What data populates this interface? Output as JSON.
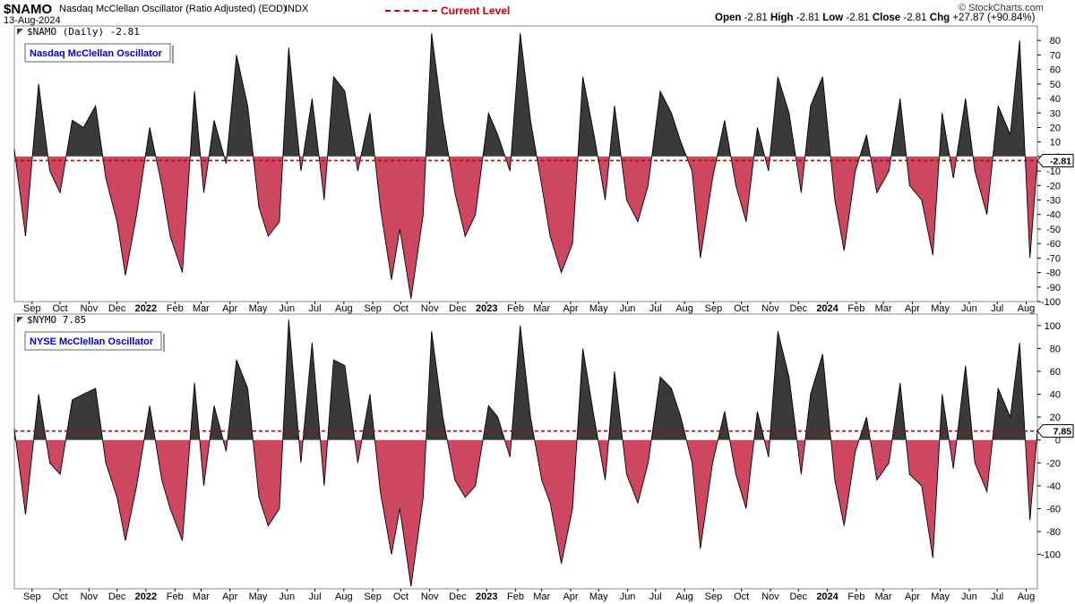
{
  "header": {
    "symbol": "$NAMO",
    "description": "Nasdaq McClellan Oscillator (Ratio Adjusted) (EOD)",
    "exchange": "INDX",
    "date": "13-Aug-2024",
    "legend_current": "Current Level",
    "ohlc": [
      {
        "label": "Open",
        "value": "-2.81"
      },
      {
        "label": "High",
        "value": "-2.81"
      },
      {
        "label": "Low",
        "value": "-2.81"
      },
      {
        "label": "Close",
        "value": "-2.81"
      },
      {
        "label": "Chg",
        "value": "+27.87 (+90.84%)"
      }
    ],
    "brand": "© StockCharts.com"
  },
  "colors": {
    "positive": "#3a3a3a",
    "negative": "#cd4760",
    "current_line": "#cc0000",
    "label_text": "#0000cc"
  },
  "chart_data": [
    {
      "type": "area",
      "panel_title": "$NAMO (Daily) -2.81",
      "legend_box": "Nasdaq McClellan Oscillator",
      "current_level": -2.81,
      "current_tag": "-2.81",
      "ylim": [
        -100,
        90
      ],
      "yticks": [
        80,
        70,
        60,
        50,
        40,
        30,
        20,
        10,
        0,
        -10,
        -20,
        -30,
        -40,
        -50,
        -60,
        -70,
        -80,
        -90,
        -100
      ],
      "x_labels": [
        "Sep",
        "Oct",
        "Nov",
        "Dec",
        "2022",
        "Feb",
        "Mar",
        "Apr",
        "May",
        "Jun",
        "Jul",
        "Aug",
        "Sep",
        "Oct",
        "Nov",
        "Dec",
        "2023",
        "Feb",
        "Mar",
        "Apr",
        "May",
        "Jun",
        "Jul",
        "Aug",
        "Sep",
        "Oct",
        "Nov",
        "Dec",
        "2024",
        "Feb",
        "Mar",
        "Apr",
        "May",
        "Jun",
        "Jul",
        "Aug"
      ],
      "x_range": [
        "2021-08-13",
        "2024-08-13"
      ],
      "grid": false,
      "series": [
        {
          "x": [
            "2021-08-13",
            "2021-08-25",
            "2021-09-08",
            "2021-09-20",
            "2021-10-01",
            "2021-10-14",
            "2021-10-26",
            "2021-11-08",
            "2021-11-19",
            "2021-12-01",
            "2021-12-10",
            "2021-12-22",
            "2022-01-05",
            "2022-01-18",
            "2022-01-27",
            "2022-02-09",
            "2022-02-22",
            "2022-03-04",
            "2022-03-15",
            "2022-03-28",
            "2022-04-08",
            "2022-04-20",
            "2022-05-02",
            "2022-05-12",
            "2022-05-24",
            "2022-06-03",
            "2022-06-16",
            "2022-06-28",
            "2022-07-11",
            "2022-07-21",
            "2022-08-02",
            "2022-08-16",
            "2022-08-29",
            "2022-09-09",
            "2022-09-21",
            "2022-09-30",
            "2022-10-12",
            "2022-10-25",
            "2022-11-03",
            "2022-11-15",
            "2022-11-28",
            "2022-12-09",
            "2022-12-20",
            "2023-01-03",
            "2023-01-13",
            "2023-01-26",
            "2023-02-06",
            "2023-02-17",
            "2023-03-01",
            "2023-03-10",
            "2023-03-22",
            "2023-04-03",
            "2023-04-14",
            "2023-04-26",
            "2023-05-08",
            "2023-05-18",
            "2023-05-31",
            "2023-06-12",
            "2023-06-23",
            "2023-07-06",
            "2023-07-18",
            "2023-07-28",
            "2023-08-09",
            "2023-08-18",
            "2023-08-31",
            "2023-09-13",
            "2023-09-25",
            "2023-10-06",
            "2023-10-18",
            "2023-10-30",
            "2023-11-09",
            "2023-11-21",
            "2023-12-04",
            "2023-12-14",
            "2023-12-27",
            "2024-01-09",
            "2024-01-19",
            "2024-01-31",
            "2024-02-12",
            "2024-02-23",
            "2024-03-07",
            "2024-03-19",
            "2024-03-29",
            "2024-04-11",
            "2024-04-23",
            "2024-05-03",
            "2024-05-15",
            "2024-05-28",
            "2024-06-07",
            "2024-06-20",
            "2024-07-02",
            "2024-07-15",
            "2024-07-25",
            "2024-08-05",
            "2024-08-13"
          ],
          "y": [
            5,
            -55,
            50,
            -10,
            -25,
            25,
            20,
            35,
            -15,
            -45,
            -82,
            -40,
            20,
            -20,
            -55,
            -80,
            45,
            -25,
            25,
            -5,
            70,
            35,
            -35,
            -55,
            -45,
            75,
            -10,
            40,
            -30,
            55,
            45,
            -10,
            30,
            -35,
            -85,
            -50,
            -98,
            -40,
            85,
            25,
            -25,
            -55,
            -40,
            30,
            15,
            -10,
            85,
            25,
            -20,
            -55,
            -80,
            -60,
            55,
            15,
            -30,
            35,
            -30,
            -45,
            -20,
            45,
            30,
            10,
            -10,
            -70,
            -15,
            25,
            -20,
            -45,
            20,
            -10,
            55,
            30,
            -25,
            35,
            55,
            -30,
            -65,
            -10,
            15,
            -25,
            -10,
            40,
            -20,
            -30,
            -68,
            30,
            -15,
            40,
            -10,
            -40,
            35,
            15,
            80,
            -70,
            -2.81
          ]
        }
      ]
    },
    {
      "type": "area",
      "panel_title": "$NYMO 7.85",
      "legend_box": "NYSE McClellan Oscillator",
      "current_level": 7.85,
      "current_tag": "7.85",
      "ylim": [
        -130,
        110
      ],
      "yticks": [
        100,
        80,
        60,
        40,
        20,
        0,
        -20,
        -40,
        -60,
        -80,
        -100
      ],
      "x_labels": [
        "Sep",
        "Oct",
        "Nov",
        "Dec",
        "2022",
        "Feb",
        "Mar",
        "Apr",
        "May",
        "Jun",
        "Jul",
        "Aug",
        "Sep",
        "Oct",
        "Nov",
        "Dec",
        "2023",
        "Feb",
        "Mar",
        "Apr",
        "May",
        "Jun",
        "Jul",
        "Aug",
        "Sep",
        "Oct",
        "Nov",
        "Dec",
        "2024",
        "Feb",
        "Mar",
        "Apr",
        "May",
        "Jun",
        "Jul",
        "Aug"
      ],
      "x_range": [
        "2021-08-13",
        "2024-08-13"
      ],
      "grid": false,
      "series": [
        {
          "x": [
            "2021-08-13",
            "2021-08-25",
            "2021-09-08",
            "2021-09-20",
            "2021-10-01",
            "2021-10-14",
            "2021-10-26",
            "2021-11-08",
            "2021-11-19",
            "2021-12-01",
            "2021-12-10",
            "2021-12-22",
            "2022-01-05",
            "2022-01-18",
            "2022-01-27",
            "2022-02-09",
            "2022-02-22",
            "2022-03-04",
            "2022-03-15",
            "2022-03-28",
            "2022-04-08",
            "2022-04-20",
            "2022-05-02",
            "2022-05-12",
            "2022-05-24",
            "2022-06-03",
            "2022-06-16",
            "2022-06-28",
            "2022-07-11",
            "2022-07-21",
            "2022-08-02",
            "2022-08-16",
            "2022-08-29",
            "2022-09-09",
            "2022-09-21",
            "2022-09-30",
            "2022-10-12",
            "2022-10-25",
            "2022-11-03",
            "2022-11-15",
            "2022-11-28",
            "2022-12-09",
            "2022-12-20",
            "2023-01-03",
            "2023-01-13",
            "2023-01-26",
            "2023-02-06",
            "2023-02-17",
            "2023-03-01",
            "2023-03-10",
            "2023-03-22",
            "2023-04-03",
            "2023-04-14",
            "2023-04-26",
            "2023-05-08",
            "2023-05-18",
            "2023-05-31",
            "2023-06-12",
            "2023-06-23",
            "2023-07-06",
            "2023-07-18",
            "2023-07-28",
            "2023-08-09",
            "2023-08-18",
            "2023-08-31",
            "2023-09-13",
            "2023-09-25",
            "2023-10-06",
            "2023-10-18",
            "2023-10-30",
            "2023-11-09",
            "2023-11-21",
            "2023-12-04",
            "2023-12-14",
            "2023-12-27",
            "2024-01-09",
            "2024-01-19",
            "2024-01-31",
            "2024-02-12",
            "2024-02-23",
            "2024-03-07",
            "2024-03-19",
            "2024-03-29",
            "2024-04-11",
            "2024-04-23",
            "2024-05-03",
            "2024-05-15",
            "2024-05-28",
            "2024-06-07",
            "2024-06-20",
            "2024-07-02",
            "2024-07-15",
            "2024-07-25",
            "2024-08-05",
            "2024-08-13"
          ],
          "y": [
            10,
            -65,
            40,
            -20,
            -30,
            35,
            40,
            45,
            -20,
            -50,
            -88,
            -40,
            30,
            -35,
            -60,
            -88,
            50,
            -40,
            30,
            -10,
            70,
            45,
            -50,
            -75,
            -60,
            105,
            -20,
            85,
            -40,
            70,
            65,
            -20,
            40,
            -45,
            -100,
            -60,
            -128,
            -50,
            95,
            20,
            -35,
            -50,
            -40,
            30,
            20,
            -15,
            100,
            20,
            -35,
            -55,
            -108,
            -60,
            80,
            20,
            -35,
            60,
            -30,
            -55,
            -20,
            55,
            45,
            20,
            -20,
            -95,
            -20,
            25,
            -30,
            -60,
            25,
            -15,
            95,
            55,
            -30,
            40,
            75,
            -35,
            -75,
            -10,
            20,
            -35,
            -20,
            50,
            -30,
            -40,
            -103,
            40,
            -25,
            65,
            -20,
            -45,
            45,
            20,
            85,
            -70,
            7.85
          ]
        }
      ]
    }
  ]
}
